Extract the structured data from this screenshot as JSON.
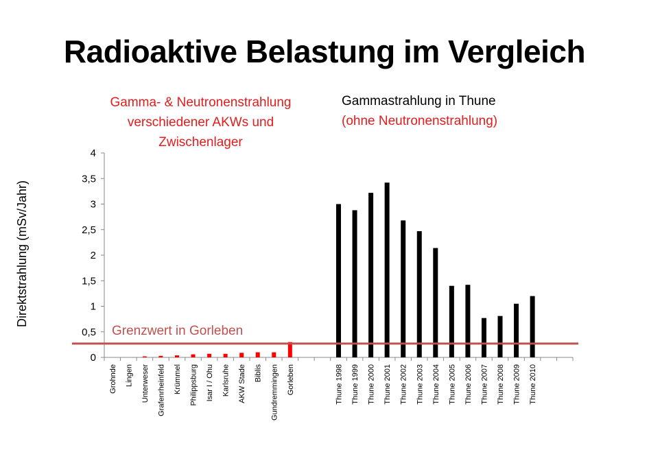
{
  "title": "Radioaktive Belastung im Vergleich",
  "note_left": "Gamma- & Neutronenstrahlung verschiedener AKWs und Zwischenlager",
  "note_right_line1": "Gammastrahlung in Thune",
  "note_right_line2": "(ohne Neutronenstrahlung)",
  "colors": {
    "red_bars": "#ff0000",
    "black_bars": "#000000",
    "limit_line": "#c0504d",
    "note_red": "#e31c1c"
  },
  "chart_data": {
    "type": "bar",
    "title": "Radioaktive Belastung im Vergleich",
    "ylabel": "Direktstrahlung (mSv/Jahr)",
    "ylim": [
      0,
      4
    ],
    "yticks": [
      "0",
      "0,5",
      "1",
      "1,5",
      "2",
      "2,5",
      "3",
      "3,5",
      "4"
    ],
    "grid": false,
    "categories": [
      "Grohnde",
      "Lingen",
      "Unterweser",
      "Grafenrheinfeld",
      "Krümmel",
      "Philippsburg",
      "Isar I / Ohu",
      "Karlsruhe",
      "AKW Stade",
      "Biblis",
      "Gundremmingen",
      "Gorleben",
      "",
      "",
      "Thune 1998",
      "Thune 1999",
      "Thune 2000",
      "Thune 2001",
      "Thune 2002",
      "Thune 2003",
      "Thune 2004",
      "Thune 2005",
      "Thune 2006",
      "Thune 2007",
      "Thune 2008",
      "Thune 2009",
      "Thune 2010",
      "",
      ""
    ],
    "values": [
      0,
      0,
      0.02,
      0.03,
      0.04,
      0.06,
      0.07,
      0.07,
      0.09,
      0.1,
      0.1,
      0.3,
      null,
      null,
      3.0,
      2.88,
      3.22,
      3.42,
      2.68,
      2.47,
      2.14,
      1.4,
      1.42,
      0.77,
      0.81,
      1.05,
      1.2,
      null,
      null
    ],
    "bar_groups": [
      "red",
      "red",
      "red",
      "red",
      "red",
      "red",
      "red",
      "red",
      "red",
      "red",
      "red",
      "red",
      "none",
      "none",
      "black",
      "black",
      "black",
      "black",
      "black",
      "black",
      "black",
      "black",
      "black",
      "black",
      "black",
      "black",
      "black",
      "none",
      "none"
    ],
    "reference_line": {
      "label": "Grenzwert in Gorleben",
      "value": 0.27
    }
  }
}
